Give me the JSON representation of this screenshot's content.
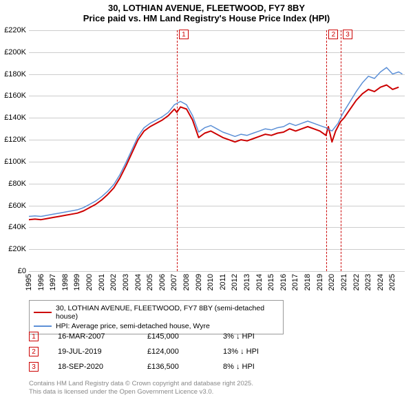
{
  "title": {
    "line1": "30, LOTHIAN AVENUE, FLEETWOOD, FY7 8BY",
    "line2": "Price paid vs. HM Land Registry's House Price Index (HPI)"
  },
  "chart": {
    "type": "line",
    "background_color": "#ffffff",
    "grid_color": "#cccccc",
    "xlim": [
      1995,
      2026
    ],
    "ylim": [
      0,
      220000
    ],
    "ytick_step": 20000,
    "yticks": [
      {
        "v": 0,
        "label": "£0"
      },
      {
        "v": 20000,
        "label": "£20K"
      },
      {
        "v": 40000,
        "label": "£40K"
      },
      {
        "v": 60000,
        "label": "£60K"
      },
      {
        "v": 80000,
        "label": "£80K"
      },
      {
        "v": 100000,
        "label": "£100K"
      },
      {
        "v": 120000,
        "label": "£120K"
      },
      {
        "v": 140000,
        "label": "£140K"
      },
      {
        "v": 160000,
        "label": "£160K"
      },
      {
        "v": 180000,
        "label": "£180K"
      },
      {
        "v": 200000,
        "label": "£200K"
      },
      {
        "v": 220000,
        "label": "£220K"
      }
    ],
    "xticks": [
      1995,
      1996,
      1997,
      1998,
      1999,
      2000,
      2001,
      2002,
      2003,
      2004,
      2005,
      2006,
      2007,
      2008,
      2009,
      2010,
      2011,
      2012,
      2013,
      2014,
      2015,
      2016,
      2017,
      2018,
      2019,
      2020,
      2021,
      2022,
      2023,
      2024,
      2025
    ],
    "series": [
      {
        "name": "price_paid",
        "label": "30, LOTHIAN AVENUE, FLEETWOOD, FY7 8BY (semi-detached house)",
        "color": "#cc0000",
        "line_width": 2,
        "data": [
          [
            1995,
            47000
          ],
          [
            1995.5,
            47500
          ],
          [
            1996,
            47000
          ],
          [
            1996.5,
            48000
          ],
          [
            1997,
            49000
          ],
          [
            1997.5,
            50000
          ],
          [
            1998,
            51000
          ],
          [
            1998.5,
            52000
          ],
          [
            1999,
            53000
          ],
          [
            1999.5,
            55000
          ],
          [
            2000,
            58000
          ],
          [
            2000.5,
            61000
          ],
          [
            2001,
            65000
          ],
          [
            2001.5,
            70000
          ],
          [
            2002,
            76000
          ],
          [
            2002.5,
            85000
          ],
          [
            2003,
            96000
          ],
          [
            2003.5,
            108000
          ],
          [
            2004,
            120000
          ],
          [
            2004.5,
            128000
          ],
          [
            2005,
            132000
          ],
          [
            2005.5,
            135000
          ],
          [
            2006,
            138000
          ],
          [
            2006.5,
            142000
          ],
          [
            2007,
            148000
          ],
          [
            2007.2,
            145000
          ],
          [
            2007.5,
            150000
          ],
          [
            2008,
            148000
          ],
          [
            2008.5,
            138000
          ],
          [
            2009,
            122000
          ],
          [
            2009.5,
            126000
          ],
          [
            2010,
            128000
          ],
          [
            2010.5,
            125000
          ],
          [
            2011,
            122000
          ],
          [
            2011.5,
            120000
          ],
          [
            2012,
            118000
          ],
          [
            2012.5,
            120000
          ],
          [
            2013,
            119000
          ],
          [
            2013.5,
            121000
          ],
          [
            2014,
            123000
          ],
          [
            2014.5,
            125000
          ],
          [
            2015,
            124000
          ],
          [
            2015.5,
            126000
          ],
          [
            2016,
            127000
          ],
          [
            2016.5,
            130000
          ],
          [
            2017,
            128000
          ],
          [
            2017.5,
            130000
          ],
          [
            2018,
            132000
          ],
          [
            2018.5,
            130000
          ],
          [
            2019,
            128000
          ],
          [
            2019.5,
            124000
          ],
          [
            2019.7,
            132000
          ],
          [
            2020,
            118000
          ],
          [
            2020.3,
            128000
          ],
          [
            2020.7,
            136500
          ],
          [
            2021,
            140000
          ],
          [
            2021.5,
            148000
          ],
          [
            2022,
            156000
          ],
          [
            2022.5,
            162000
          ],
          [
            2023,
            166000
          ],
          [
            2023.5,
            164000
          ],
          [
            2024,
            168000
          ],
          [
            2024.5,
            170000
          ],
          [
            2025,
            166000
          ],
          [
            2025.5,
            168000
          ]
        ]
      },
      {
        "name": "hpi",
        "label": "HPI: Average price, semi-detached house, Wyre",
        "color": "#5b8fd6",
        "line_width": 1.5,
        "data": [
          [
            1995,
            50000
          ],
          [
            1995.5,
            50500
          ],
          [
            1996,
            50000
          ],
          [
            1996.5,
            51000
          ],
          [
            1997,
            52000
          ],
          [
            1997.5,
            53000
          ],
          [
            1998,
            54000
          ],
          [
            1998.5,
            55000
          ],
          [
            1999,
            56000
          ],
          [
            1999.5,
            58000
          ],
          [
            2000,
            61000
          ],
          [
            2000.5,
            64000
          ],
          [
            2001,
            68000
          ],
          [
            2001.5,
            73000
          ],
          [
            2002,
            79000
          ],
          [
            2002.5,
            88000
          ],
          [
            2003,
            99000
          ],
          [
            2003.5,
            111000
          ],
          [
            2004,
            123000
          ],
          [
            2004.5,
            131000
          ],
          [
            2005,
            135000
          ],
          [
            2005.5,
            138000
          ],
          [
            2006,
            141000
          ],
          [
            2006.5,
            145000
          ],
          [
            2007,
            152000
          ],
          [
            2007.5,
            155000
          ],
          [
            2008,
            152000
          ],
          [
            2008.5,
            142000
          ],
          [
            2009,
            127000
          ],
          [
            2009.5,
            131000
          ],
          [
            2010,
            133000
          ],
          [
            2010.5,
            130000
          ],
          [
            2011,
            127000
          ],
          [
            2011.5,
            125000
          ],
          [
            2012,
            123000
          ],
          [
            2012.5,
            125000
          ],
          [
            2013,
            124000
          ],
          [
            2013.5,
            126000
          ],
          [
            2014,
            128000
          ],
          [
            2014.5,
            130000
          ],
          [
            2015,
            129000
          ],
          [
            2015.5,
            131000
          ],
          [
            2016,
            132000
          ],
          [
            2016.5,
            135000
          ],
          [
            2017,
            133000
          ],
          [
            2017.5,
            135000
          ],
          [
            2018,
            137000
          ],
          [
            2018.5,
            135000
          ],
          [
            2019,
            133000
          ],
          [
            2019.5,
            131000
          ],
          [
            2020,
            128000
          ],
          [
            2020.5,
            135000
          ],
          [
            2020.7,
            140000
          ],
          [
            2021,
            146000
          ],
          [
            2021.5,
            155000
          ],
          [
            2022,
            164000
          ],
          [
            2022.5,
            172000
          ],
          [
            2023,
            178000
          ],
          [
            2023.5,
            176000
          ],
          [
            2024,
            182000
          ],
          [
            2024.5,
            186000
          ],
          [
            2025,
            180000
          ],
          [
            2025.5,
            182000
          ],
          [
            2025.8,
            180000
          ]
        ]
      }
    ],
    "events": [
      {
        "n": "1",
        "x": 2007.2,
        "date": "16-MAR-2007",
        "price": "£145,000",
        "delta": "3% ↓ HPI"
      },
      {
        "n": "2",
        "x": 2019.55,
        "date": "19-JUL-2019",
        "price": "£124,000",
        "delta": "13% ↓ HPI"
      },
      {
        "n": "3",
        "x": 2020.72,
        "date": "18-SEP-2020",
        "price": "£136,500",
        "delta": "8% ↓ HPI"
      }
    ],
    "event_line_color": "#cc0000",
    "axis_fontsize": 11,
    "title_fontsize": 13
  },
  "legend": {
    "border_color": "#999999",
    "fontsize": 10.5
  },
  "footer": {
    "line1": "Contains HM Land Registry data © Crown copyright and database right 2025.",
    "line2": "This data is licensed under the Open Government Licence v3.0.",
    "color": "#888888"
  }
}
